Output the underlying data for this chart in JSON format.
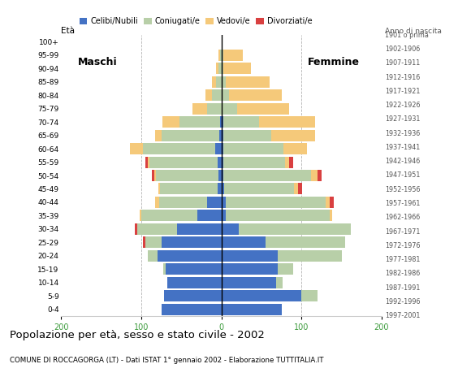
{
  "age_groups": [
    "0-4",
    "5-9",
    "10-14",
    "15-19",
    "20-24",
    "25-29",
    "30-34",
    "35-39",
    "40-44",
    "45-49",
    "50-54",
    "55-59",
    "60-64",
    "65-69",
    "70-74",
    "75-79",
    "80-84",
    "85-89",
    "90-94",
    "95-99",
    "100+"
  ],
  "birth_years": [
    "1997-2001",
    "1992-1996",
    "1987-1991",
    "1982-1986",
    "1977-1981",
    "1972-1976",
    "1967-1971",
    "1962-1966",
    "1957-1961",
    "1952-1956",
    "1947-1951",
    "1942-1946",
    "1937-1941",
    "1932-1936",
    "1927-1931",
    "1922-1926",
    "1917-1921",
    "1912-1916",
    "1907-1911",
    "1902-1906",
    "1901 o prima"
  ],
  "males": {
    "celibe": [
      75,
      72,
      68,
      70,
      80,
      75,
      55,
      30,
      18,
      5,
      4,
      5,
      8,
      3,
      2,
      0,
      0,
      0,
      0,
      0,
      0
    ],
    "coniugato": [
      0,
      0,
      0,
      3,
      12,
      20,
      50,
      70,
      60,
      72,
      78,
      85,
      90,
      72,
      50,
      18,
      12,
      7,
      4,
      2,
      0
    ],
    "vedovo": [
      0,
      0,
      0,
      0,
      0,
      0,
      0,
      2,
      5,
      2,
      2,
      2,
      16,
      8,
      22,
      18,
      8,
      5,
      3,
      2,
      0
    ],
    "divorziato": [
      0,
      0,
      0,
      0,
      0,
      3,
      3,
      0,
      0,
      0,
      3,
      3,
      0,
      0,
      0,
      0,
      0,
      0,
      0,
      0,
      0
    ]
  },
  "females": {
    "nubile": [
      75,
      100,
      68,
      70,
      70,
      55,
      22,
      5,
      5,
      3,
      2,
      2,
      2,
      2,
      2,
      0,
      0,
      0,
      0,
      0,
      0
    ],
    "coniugata": [
      0,
      20,
      8,
      20,
      80,
      100,
      140,
      130,
      125,
      88,
      110,
      78,
      75,
      60,
      45,
      20,
      10,
      5,
      2,
      2,
      0
    ],
    "vedova": [
      0,
      0,
      0,
      0,
      0,
      0,
      0,
      3,
      5,
      5,
      8,
      5,
      30,
      55,
      70,
      65,
      65,
      55,
      35,
      25,
      0
    ],
    "divorziata": [
      0,
      0,
      0,
      0,
      0,
      0,
      0,
      0,
      5,
      5,
      5,
      5,
      0,
      0,
      0,
      0,
      0,
      0,
      0,
      0,
      0
    ]
  },
  "colors": {
    "celibe": "#4472C4",
    "coniugato": "#B8CFA8",
    "vedovo": "#F5C97A",
    "divorziato": "#D94040"
  },
  "xlim": 200,
  "title": "Popolazione per età, sesso e stato civile - 2002",
  "subtitle": "COMUNE DI ROCCAGORGA (LT) - Dati ISTAT 1° gennaio 2002 - Elaborazione TUTTITALIA.IT",
  "legend_labels": [
    "Celibi/Nubili",
    "Coniugati/e",
    "Vedovi/e",
    "Divorziati/e"
  ],
  "background_color": "#ffffff",
  "xlabel_color": "#3a9a3a",
  "label_maschi": "Maschi",
  "label_femmine": "Femmine",
  "label_eta": "Età",
  "label_anno": "Anno di nascita"
}
